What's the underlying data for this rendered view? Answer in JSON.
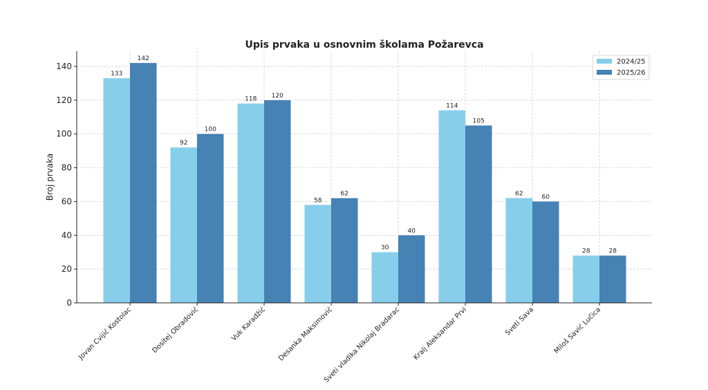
{
  "chart_data": {
    "type": "bar",
    "title": "Upis prvaka u osnovnim školama Požarevca",
    "xlabel": "",
    "ylabel": "Broj prvaka",
    "ylim": [
      0,
      149
    ],
    "yticks": [
      0,
      20,
      40,
      60,
      80,
      100,
      120,
      140
    ],
    "grid": true,
    "legend_position": "top-right",
    "categories": [
      "Jovan Cvijić Kostolac",
      "Dositej Obradović",
      "Vuk Karadžić",
      "Desanka Maksimović",
      "Sveti vladika Nikolaj Bradarac",
      "Kralj Aleksandar Prvi",
      "Sveti Sava",
      "Miloš Savić Lučica"
    ],
    "series": [
      {
        "name": "2024/25",
        "color": "#87ceeb",
        "values": [
          133,
          92,
          118,
          58,
          30,
          114,
          62,
          28
        ]
      },
      {
        "name": "2025/26",
        "color": "#4682b4",
        "values": [
          142,
          100,
          120,
          62,
          40,
          105,
          60,
          28
        ]
      }
    ]
  }
}
